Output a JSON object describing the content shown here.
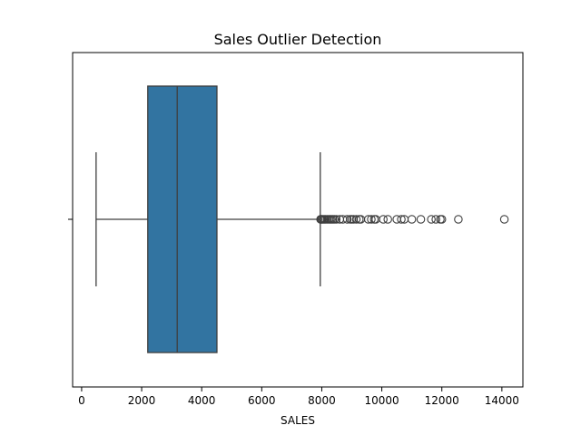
{
  "chart_data": {
    "type": "box",
    "title": "Sales Outlier Detection",
    "xlabel": "SALES",
    "ylabel": "",
    "xlim": [
      -300,
      14700
    ],
    "xticks": [
      0,
      2000,
      4000,
      6000,
      8000,
      10000,
      12000,
      14000
    ],
    "grid": false,
    "orientation": "horizontal",
    "colors": {
      "box_fill": "#3274a1",
      "line": "#3f3f3f"
    },
    "series": [
      {
        "whisker_low": 482,
        "q1": 2203,
        "median": 3184,
        "q3": 4508,
        "whisker_high": 7950,
        "outliers": [
          7960,
          7985,
          8010,
          8050,
          8090,
          8130,
          8180,
          8230,
          8280,
          8320,
          8370,
          8420,
          8480,
          8600,
          8700,
          8850,
          8950,
          9000,
          9060,
          9150,
          9250,
          9300,
          9550,
          9650,
          9750,
          9800,
          10050,
          10200,
          10500,
          10650,
          10750,
          11000,
          11300,
          11650,
          11800,
          11950,
          12000,
          12550,
          14082
        ]
      }
    ]
  }
}
